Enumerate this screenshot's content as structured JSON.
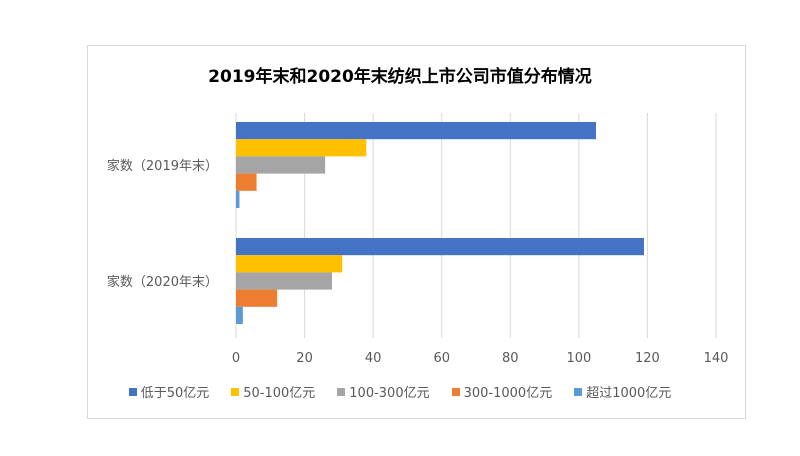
{
  "chart_data": {
    "type": "bar",
    "orientation": "horizontal",
    "title": "2019年末和2020年末纺织上市公司市值分布情况",
    "categories": [
      "家数（2019年末）",
      "家数（2020年末）"
    ],
    "series": [
      {
        "name": "低于50亿元",
        "values": [
          105,
          119
        ],
        "color": "#4472C4"
      },
      {
        "name": "50-100亿元",
        "values": [
          38,
          31
        ],
        "color": "#FFC000"
      },
      {
        "name": "100-300亿元",
        "values": [
          26,
          28
        ],
        "color": "#A5A5A5"
      },
      {
        "name": "300-1000亿元",
        "values": [
          6,
          12
        ],
        "color": "#ED7D31"
      },
      {
        "name": "超过1000亿元",
        "values": [
          1,
          2
        ],
        "color": "#5B9BD5"
      }
    ],
    "xlim": [
      0,
      140
    ],
    "xticks": [
      "0",
      "20",
      "40",
      "60",
      "80",
      "100",
      "120",
      "140"
    ],
    "grid": true,
    "legend": "bottom"
  }
}
